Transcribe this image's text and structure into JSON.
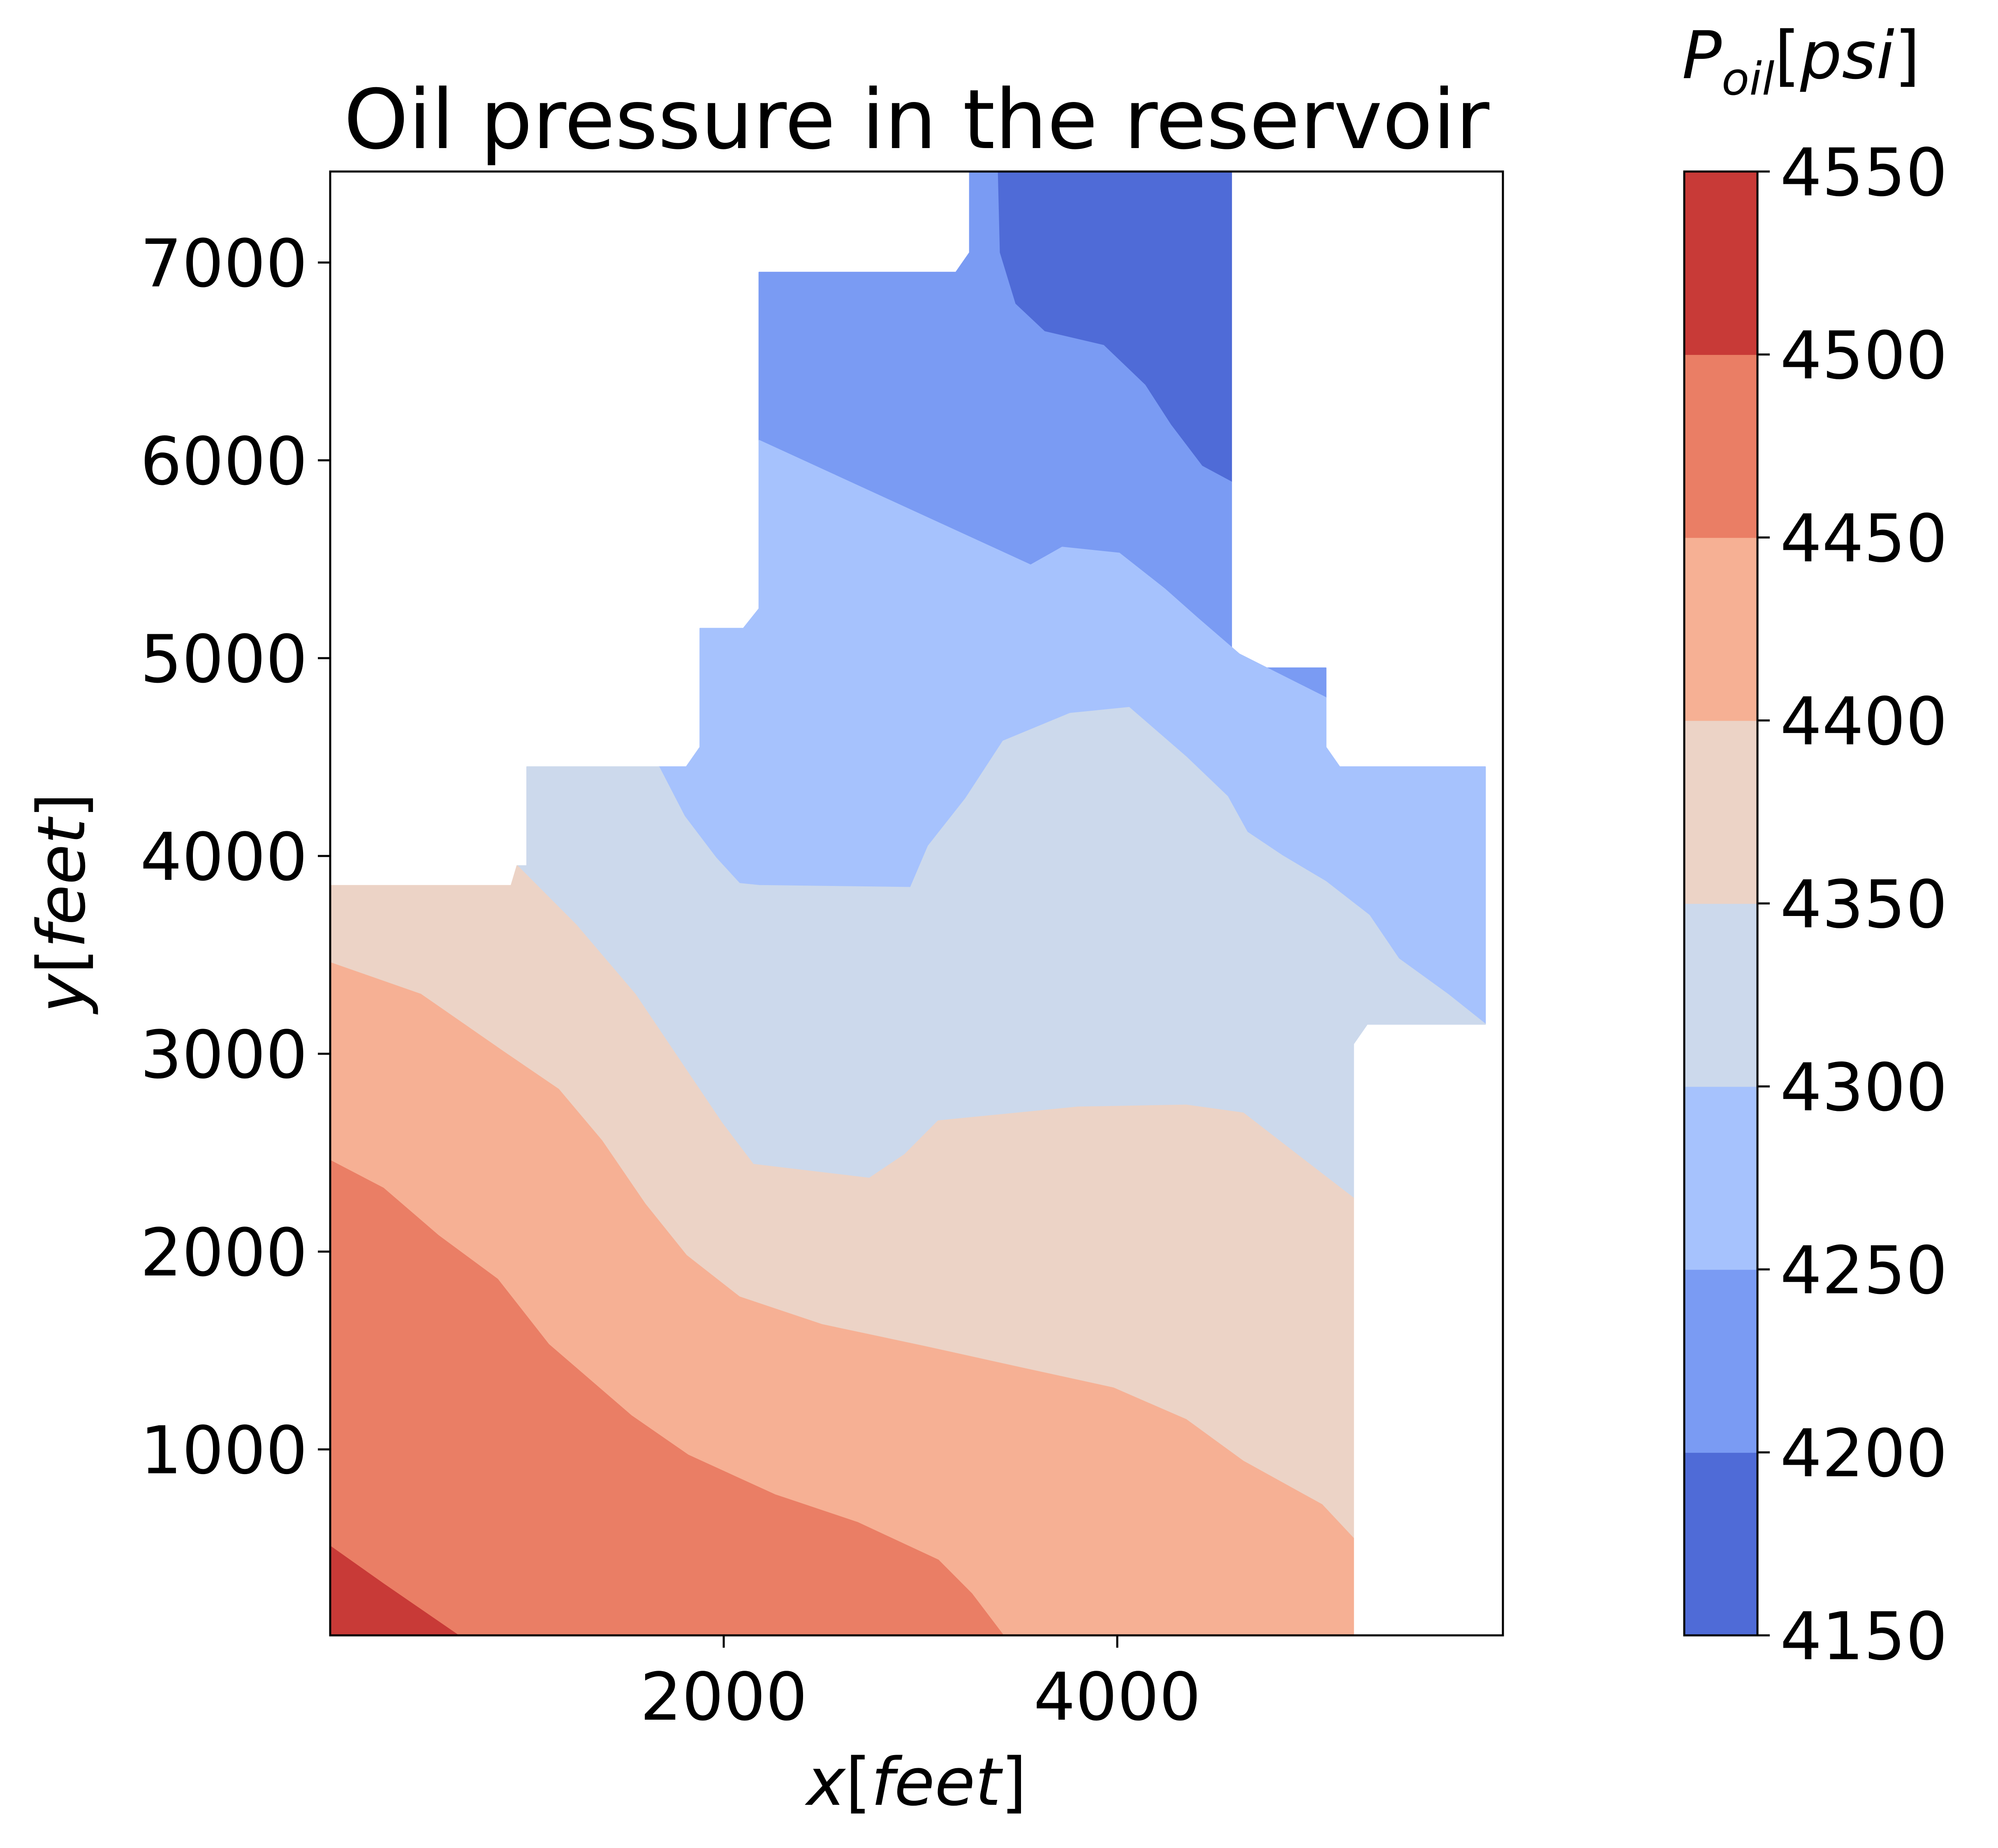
{
  "chart_data": {
    "type": "contourf",
    "title": "Oil pressure in the reservoir",
    "xlabel": "x[feet]",
    "ylabel": "y[feet]",
    "xlabel_parts": {
      "var": "x",
      "unit": "feet"
    },
    "ylabel_parts": {
      "var": "y",
      "unit": "feet"
    },
    "colorbar_label": "P_oil[psi]",
    "colorbar_label_parts": {
      "var": "P",
      "sub": "oil",
      "unit": "psi"
    },
    "xlim": [
      0,
      5960
    ],
    "ylim": [
      60,
      7460
    ],
    "xticks": [
      2000,
      4000
    ],
    "xtick_labels": [
      "2000",
      "4000"
    ],
    "yticks": [
      1000,
      2000,
      3000,
      4000,
      5000,
      6000,
      7000
    ],
    "ytick_labels": [
      "1000",
      "2000",
      "3000",
      "4000",
      "5000",
      "6000",
      "7000"
    ],
    "grid": false,
    "colorbar": {
      "levels": [
        4150,
        4200,
        4250,
        4300,
        4350,
        4400,
        4450,
        4500,
        4550
      ],
      "tick_labels": [
        "4150",
        "4200",
        "4250",
        "4300",
        "4350",
        "4400",
        "4450",
        "4500",
        "4550"
      ],
      "colors": [
        "#4f6bd7",
        "#7a9bf3",
        "#a6c2fd",
        "#ccd9ec",
        "#ecd3c6",
        "#f6b094",
        "#ea7e65",
        "#c83a37"
      ],
      "placement": "right"
    },
    "domain_outline": [
      [
        0,
        60
      ],
      [
        0,
        3850
      ],
      [
        920,
        3850
      ],
      [
        1000,
        3950
      ],
      [
        1000,
        4450
      ],
      [
        1810,
        4450
      ],
      [
        1880,
        4550
      ],
      [
        1880,
        5150
      ],
      [
        2100,
        5150
      ],
      [
        2180,
        5250
      ],
      [
        2180,
        6950
      ],
      [
        3180,
        6950
      ],
      [
        3250,
        7050
      ],
      [
        3250,
        7460
      ],
      [
        4580,
        7460
      ],
      [
        4580,
        4950
      ],
      [
        5060,
        4950
      ],
      [
        5060,
        4550
      ],
      [
        5130,
        4450
      ],
      [
        5870,
        4450
      ],
      [
        5870,
        3150
      ],
      [
        5270,
        3150
      ],
      [
        5200,
        3050
      ],
      [
        5200,
        60
      ]
    ],
    "regions": [
      {
        "level": [
          4150,
          4200
        ],
        "polygon": [
          [
            3390,
            7460
          ],
          [
            4580,
            7460
          ],
          [
            4580,
            5890
          ],
          [
            4430,
            5970
          ],
          [
            4270,
            6180
          ],
          [
            4140,
            6380
          ],
          [
            3930,
            6580
          ],
          [
            3630,
            6650
          ],
          [
            3480,
            6790
          ],
          [
            3400,
            7050
          ]
        ]
      },
      {
        "level": [
          4200,
          4250
        ],
        "polygon": [
          [
            2180,
            6950
          ],
          [
            3180,
            6950
          ],
          [
            3250,
            7050
          ],
          [
            3250,
            7460
          ],
          [
            3390,
            7460
          ],
          [
            3400,
            7050
          ],
          [
            3480,
            6790
          ],
          [
            3630,
            6650
          ],
          [
            3930,
            6580
          ],
          [
            4140,
            6380
          ],
          [
            4270,
            6180
          ],
          [
            4430,
            5970
          ],
          [
            4580,
            5890
          ],
          [
            4580,
            4950
          ],
          [
            5060,
            4950
          ],
          [
            5060,
            4800
          ],
          [
            4920,
            4870
          ],
          [
            4620,
            5020
          ],
          [
            4410,
            5200
          ],
          [
            4240,
            5350
          ],
          [
            4010,
            5530
          ],
          [
            3720,
            5560
          ],
          [
            3560,
            5470
          ],
          [
            2180,
            6100
          ]
        ]
      },
      {
        "level": [
          4250,
          4300
        ],
        "polygon": [
          [
            2180,
            6100
          ],
          [
            3560,
            5470
          ],
          [
            3720,
            5560
          ],
          [
            4010,
            5530
          ],
          [
            4240,
            5350
          ],
          [
            4410,
            5200
          ],
          [
            4620,
            5020
          ],
          [
            4920,
            4870
          ],
          [
            5060,
            4800
          ],
          [
            5060,
            4550
          ],
          [
            5130,
            4450
          ],
          [
            5870,
            4450
          ],
          [
            5870,
            3150
          ],
          [
            5680,
            3300
          ],
          [
            5430,
            3480
          ],
          [
            5280,
            3700
          ],
          [
            5060,
            3870
          ],
          [
            4840,
            4000
          ],
          [
            4660,
            4120
          ],
          [
            4560,
            4300
          ],
          [
            4350,
            4500
          ],
          [
            4060,
            4750
          ],
          [
            3760,
            4720
          ],
          [
            3420,
            4580
          ],
          [
            3230,
            4290
          ],
          [
            3040,
            4050
          ],
          [
            2950,
            3840
          ],
          [
            2180,
            3850
          ],
          [
            2080,
            3860
          ],
          [
            1960,
            3990
          ],
          [
            1800,
            4200
          ],
          [
            1670,
            4450
          ],
          [
            1810,
            4450
          ],
          [
            1880,
            4550
          ],
          [
            1880,
            5150
          ],
          [
            2100,
            5150
          ],
          [
            2180,
            5250
          ]
        ]
      },
      {
        "level": [
          4300,
          4350
        ],
        "polygon": [
          [
            1000,
            3950
          ],
          [
            1000,
            4450
          ],
          [
            1670,
            4450
          ],
          [
            1800,
            4200
          ],
          [
            1960,
            3990
          ],
          [
            2080,
            3860
          ],
          [
            2180,
            3850
          ],
          [
            2950,
            3840
          ],
          [
            3040,
            4050
          ],
          [
            3230,
            4290
          ],
          [
            3420,
            4580
          ],
          [
            3760,
            4720
          ],
          [
            4060,
            4750
          ],
          [
            4350,
            4500
          ],
          [
            4560,
            4300
          ],
          [
            4660,
            4120
          ],
          [
            4840,
            4000
          ],
          [
            5060,
            3870
          ],
          [
            5280,
            3700
          ],
          [
            5430,
            3480
          ],
          [
            5680,
            3300
          ],
          [
            5870,
            3150
          ],
          [
            5270,
            3150
          ],
          [
            5200,
            3050
          ],
          [
            5200,
            2270
          ],
          [
            4900,
            2500
          ],
          [
            4640,
            2700
          ],
          [
            4350,
            2740
          ],
          [
            3800,
            2730
          ],
          [
            3090,
            2660
          ],
          [
            2920,
            2490
          ],
          [
            2740,
            2370
          ],
          [
            2150,
            2440
          ],
          [
            1990,
            2650
          ],
          [
            1780,
            2960
          ],
          [
            1550,
            3300
          ],
          [
            1250,
            3650
          ],
          [
            950,
            3950
          ]
        ]
      },
      {
        "level": [
          4350,
          4400
        ],
        "polygon": [
          [
            0,
            3850
          ],
          [
            920,
            3850
          ],
          [
            950,
            3950
          ],
          [
            1250,
            3650
          ],
          [
            1550,
            3300
          ],
          [
            1780,
            2960
          ],
          [
            1990,
            2650
          ],
          [
            2150,
            2440
          ],
          [
            2740,
            2370
          ],
          [
            2920,
            2490
          ],
          [
            3090,
            2660
          ],
          [
            3800,
            2730
          ],
          [
            4350,
            2740
          ],
          [
            4640,
            2700
          ],
          [
            4900,
            2500
          ],
          [
            5200,
            2270
          ],
          [
            5200,
            550
          ],
          [
            5040,
            720
          ],
          [
            4640,
            940
          ],
          [
            4350,
            1150
          ],
          [
            3980,
            1310
          ],
          [
            3520,
            1410
          ],
          [
            3020,
            1520
          ],
          [
            2500,
            1630
          ],
          [
            2080,
            1770
          ],
          [
            1810,
            1980
          ],
          [
            1600,
            2240
          ],
          [
            1380,
            2560
          ],
          [
            1160,
            2820
          ],
          [
            880,
            3010
          ],
          [
            460,
            3300
          ],
          [
            0,
            3460
          ]
        ]
      },
      {
        "level": [
          4400,
          4450
        ],
        "polygon": [
          [
            0,
            3460
          ],
          [
            460,
            3300
          ],
          [
            880,
            3010
          ],
          [
            1160,
            2820
          ],
          [
            1380,
            2560
          ],
          [
            1600,
            2240
          ],
          [
            1810,
            1980
          ],
          [
            2080,
            1770
          ],
          [
            2500,
            1630
          ],
          [
            3020,
            1520
          ],
          [
            3520,
            1410
          ],
          [
            3980,
            1310
          ],
          [
            4350,
            1150
          ],
          [
            4640,
            940
          ],
          [
            5040,
            720
          ],
          [
            5200,
            550
          ],
          [
            5200,
            60
          ],
          [
            3420,
            60
          ],
          [
            3260,
            270
          ],
          [
            3090,
            440
          ],
          [
            2680,
            630
          ],
          [
            2260,
            770
          ],
          [
            1820,
            970
          ],
          [
            1530,
            1170
          ],
          [
            1110,
            1530
          ],
          [
            850,
            1860
          ],
          [
            550,
            2080
          ],
          [
            270,
            2320
          ],
          [
            0,
            2460
          ]
        ]
      },
      {
        "level": [
          4450,
          4500
        ],
        "polygon": [
          [
            0,
            2460
          ],
          [
            270,
            2320
          ],
          [
            550,
            2080
          ],
          [
            850,
            1860
          ],
          [
            1110,
            1530
          ],
          [
            1530,
            1170
          ],
          [
            1820,
            970
          ],
          [
            2260,
            770
          ],
          [
            2680,
            630
          ],
          [
            3090,
            440
          ],
          [
            3260,
            270
          ],
          [
            3420,
            60
          ],
          [
            650,
            60
          ],
          [
            270,
            320
          ],
          [
            0,
            510
          ]
        ]
      },
      {
        "level": [
          4500,
          4550
        ],
        "polygon": [
          [
            0,
            510
          ],
          [
            270,
            320
          ],
          [
            650,
            60
          ],
          [
            0,
            60
          ]
        ]
      }
    ]
  }
}
